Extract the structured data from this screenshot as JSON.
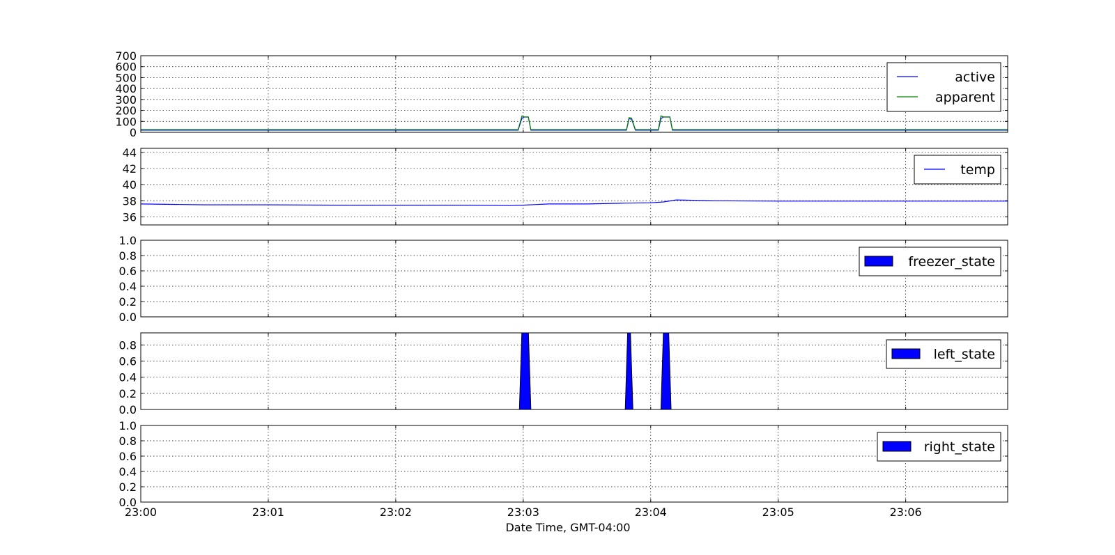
{
  "figure": {
    "xlabel": "Date Time, GMT-04:00",
    "x_tick_labels": [
      "23:00",
      "23:01",
      "23:02",
      "23:03",
      "23:04",
      "23:05",
      "23:06"
    ]
  },
  "chart_data": [
    {
      "type": "line",
      "x_unit": "minutes after 23:00",
      "xlim": [
        0,
        6.8
      ],
      "ylim": [
        0,
        700
      ],
      "yticks": [
        "0",
        "100",
        "200",
        "300",
        "400",
        "500",
        "600",
        "700"
      ],
      "grid": true,
      "legend_position": "top-right",
      "series": [
        {
          "name": "active",
          "color": "#0000ff",
          "x": [
            0,
            2.96,
            2.99,
            3.01,
            3.04,
            3.06,
            3.78,
            3.81,
            3.83,
            3.85,
            3.88,
            4.06,
            4.08,
            4.1,
            4.15,
            4.17,
            6.8
          ],
          "y": [
            20,
            20,
            130,
            140,
            140,
            20,
            20,
            20,
            125,
            120,
            20,
            20,
            125,
            140,
            140,
            20,
            20
          ]
        },
        {
          "name": "apparent",
          "color": "#008000",
          "x": [
            0,
            2.96,
            2.99,
            3.01,
            3.04,
            3.06,
            3.78,
            3.81,
            3.83,
            3.85,
            3.88,
            4.06,
            4.08,
            4.1,
            4.15,
            4.17,
            6.8
          ],
          "y": [
            25,
            25,
            150,
            140,
            140,
            25,
            25,
            25,
            135,
            130,
            25,
            25,
            150,
            140,
            140,
            25,
            25
          ]
        }
      ]
    },
    {
      "type": "line",
      "x_unit": "minutes after 23:00",
      "xlim": [
        0,
        6.8
      ],
      "ylim": [
        35,
        44.5
      ],
      "yticks": [
        "36",
        "38",
        "40",
        "42",
        "44"
      ],
      "grid": true,
      "legend_position": "top-right",
      "series": [
        {
          "name": "temp",
          "color": "#0000ff",
          "x": [
            0,
            0.5,
            1.0,
            1.5,
            2.0,
            2.5,
            2.9,
            3.0,
            3.2,
            3.5,
            3.8,
            4.0,
            4.1,
            4.2,
            4.5,
            5.0,
            5.5,
            6.0,
            6.8
          ],
          "y": [
            37.6,
            37.5,
            37.5,
            37.45,
            37.45,
            37.45,
            37.4,
            37.45,
            37.6,
            37.6,
            37.7,
            37.75,
            37.85,
            38.1,
            38.0,
            37.95,
            37.95,
            37.95,
            37.95
          ]
        }
      ]
    },
    {
      "type": "area",
      "x_unit": "minutes after 23:00",
      "xlim": [
        0,
        6.8
      ],
      "ylim": [
        0,
        1.0
      ],
      "yticks": [
        "0.0",
        "0.2",
        "0.4",
        "0.6",
        "0.8",
        "1.0"
      ],
      "grid": true,
      "legend_position": "top-right",
      "series": [
        {
          "name": "freezer_state",
          "color": "#0000ff",
          "x": [
            0,
            6.8
          ],
          "y": [
            0,
            0
          ]
        }
      ]
    },
    {
      "type": "area",
      "x_unit": "minutes after 23:00",
      "xlim": [
        0,
        6.8
      ],
      "ylim": [
        0,
        0.95
      ],
      "yticks": [
        "0.0",
        "0.2",
        "0.4",
        "0.6",
        "0.8"
      ],
      "grid": true,
      "legend_position": "top-right",
      "series": [
        {
          "name": "left_state",
          "color": "#0000ff",
          "x": [
            0,
            2.97,
            2.99,
            3.04,
            3.06,
            3.8,
            3.82,
            3.84,
            3.86,
            4.08,
            4.1,
            4.14,
            4.16,
            6.8
          ],
          "y": [
            0,
            0,
            1,
            1,
            0,
            0,
            1,
            1,
            0,
            0,
            1,
            1,
            0,
            0
          ]
        }
      ]
    },
    {
      "type": "area",
      "x_unit": "minutes after 23:00",
      "xlim": [
        0,
        6.8
      ],
      "ylim": [
        0,
        1.0
      ],
      "yticks": [
        "0.0",
        "0.2",
        "0.4",
        "0.6",
        "0.8",
        "1.0"
      ],
      "grid": true,
      "legend_position": "top-right",
      "series": [
        {
          "name": "right_state",
          "color": "#0000ff",
          "x": [
            0,
            6.8
          ],
          "y": [
            0,
            0
          ]
        }
      ]
    }
  ]
}
